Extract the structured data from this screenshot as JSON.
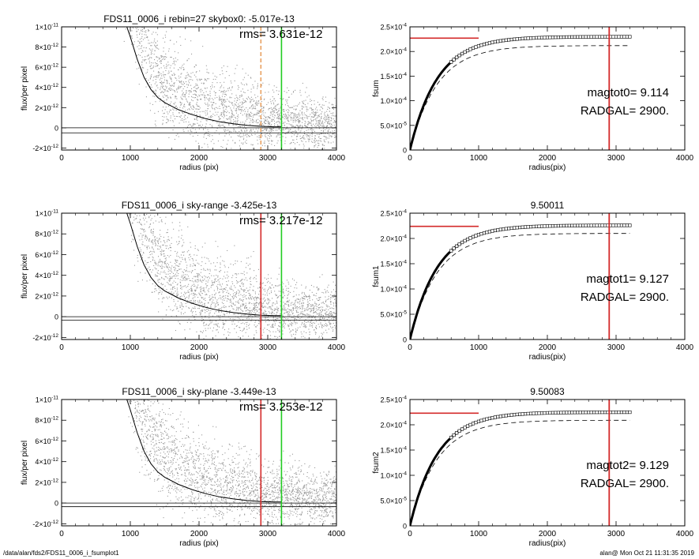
{
  "footer": {
    "left": "/data/alan/fds2/FDS11_0006_i_fsumplot1",
    "right": "alan@  Mon Oct 21 11:31:35 2019"
  },
  "colors": {
    "scatter_points": "#999999",
    "profile_line": "#000000",
    "red_line": "#d42a2a",
    "green_line": "#22cc22",
    "orange_dashed_line": "#e8a060"
  },
  "chart_data": [
    {
      "id": "row1-left",
      "type": "scatter",
      "title": "FDS11_0006_i rebin=27    skybox0: -5.017e-13",
      "annotation": "rms= 3.631e-12",
      "xlabel": "radius (pix)",
      "ylabel": "flux/per pixel",
      "xlim": [
        0,
        4000
      ],
      "ylim": [
        -2.2e-12,
        1e-11
      ],
      "x_ticks": [
        "0",
        "1000",
        "2000",
        "3000",
        "4000"
      ],
      "y_ticks": [
        {
          "v": -2e-12,
          "m": "-2×10",
          "e": "-12"
        },
        {
          "v": 0,
          "m": "0",
          "e": ""
        },
        {
          "v": 2e-12,
          "m": "2×10",
          "e": "-12"
        },
        {
          "v": 4e-12,
          "m": "4×10",
          "e": "-12"
        },
        {
          "v": 6e-12,
          "m": "6×10",
          "e": "-12"
        },
        {
          "v": 8e-12,
          "m": "8×10",
          "e": "-12"
        },
        {
          "v": 1e-11,
          "m": "1×10",
          "e": "-11"
        }
      ],
      "profile": {
        "x": [
          950,
          1000,
          1100,
          1200,
          1300,
          1400,
          1500,
          1700,
          1900,
          2100,
          2300,
          2500,
          2700,
          2900,
          3100,
          3200
        ],
        "y": [
          1e-11,
          9e-12,
          6.8e-12,
          5e-12,
          3.8e-12,
          3e-12,
          2.5e-12,
          1.8e-12,
          1.3e-12,
          9e-13,
          6e-13,
          4e-13,
          2.5e-13,
          1.5e-13,
          1e-13,
          1e-13
        ]
      },
      "horizontal_lines": [
        0,
        -5.017e-13
      ],
      "vertical_lines": [
        {
          "x": 2900,
          "color": "orange",
          "style": "dashed"
        },
        {
          "x": 3200,
          "color": "green",
          "style": "solid"
        }
      ]
    },
    {
      "id": "row1-right",
      "type": "line",
      "title": "",
      "xlabel": "radius(pix)",
      "ylabel": "fsum",
      "xlim": [
        0,
        4000
      ],
      "ylim": [
        0,
        0.00025
      ],
      "x_ticks": [
        "0",
        "1000",
        "2000",
        "3000",
        "4000"
      ],
      "y_ticks": [
        {
          "v": 0,
          "m": "0",
          "e": ""
        },
        {
          "v": 5e-05,
          "m": "5.0×10",
          "e": "-5"
        },
        {
          "v": 0.0001,
          "m": "1.0×10",
          "e": "-4"
        },
        {
          "v": 0.00015,
          "m": "1.5×10",
          "e": "-4"
        },
        {
          "v": 0.0002,
          "m": "2.0×10",
          "e": "-4"
        },
        {
          "v": 0.00025,
          "m": "2.5×10",
          "e": "-4"
        }
      ],
      "asymptote": 0.00023,
      "dashed_asymptote": 0.000212,
      "curve_end_x": 3200,
      "red_hline": {
        "y": 0.000227,
        "x0": 0,
        "x1": 1000
      },
      "red_vline_x": 2900,
      "text_lines": [
        "magtot0=   9.114",
        "RADGAL=   2900."
      ]
    },
    {
      "id": "row2-left",
      "type": "scatter",
      "title": "FDS11_0006_i sky-range -3.425e-13",
      "annotation": "rms= 3.217e-12",
      "xlabel": "radius (pix)",
      "ylabel": "flux/per pixel",
      "xlim": [
        0,
        4000
      ],
      "ylim": [
        -2.2e-12,
        1e-11
      ],
      "x_ticks": [
        "0",
        "1000",
        "2000",
        "3000",
        "4000"
      ],
      "y_ticks": [
        {
          "v": -2e-12,
          "m": "-2×10",
          "e": "-12"
        },
        {
          "v": 0,
          "m": "0",
          "e": ""
        },
        {
          "v": 2e-12,
          "m": "2×10",
          "e": "-12"
        },
        {
          "v": 4e-12,
          "m": "4×10",
          "e": "-12"
        },
        {
          "v": 6e-12,
          "m": "6×10",
          "e": "-12"
        },
        {
          "v": 8e-12,
          "m": "8×10",
          "e": "-12"
        },
        {
          "v": 1e-11,
          "m": "1×10",
          "e": "-11"
        }
      ],
      "profile": {
        "x": [
          950,
          1000,
          1100,
          1200,
          1300,
          1400,
          1500,
          1700,
          1900,
          2100,
          2300,
          2500,
          2700,
          2900,
          3100,
          3200
        ],
        "y": [
          1e-11,
          9e-12,
          6.8e-12,
          5e-12,
          3.8e-12,
          3e-12,
          2.5e-12,
          1.8e-12,
          1.3e-12,
          9e-13,
          6e-13,
          4e-13,
          2.5e-13,
          1.5e-13,
          1e-13,
          1e-13
        ]
      },
      "horizontal_lines": [
        0,
        -3.425e-13
      ],
      "vertical_lines": [
        {
          "x": 2900,
          "color": "red",
          "style": "solid"
        },
        {
          "x": 3200,
          "color": "green",
          "style": "solid"
        }
      ]
    },
    {
      "id": "row2-right",
      "type": "line",
      "title": "9.50011",
      "xlabel": "radius(pix)",
      "ylabel": "fsum1",
      "xlim": [
        0,
        4000
      ],
      "ylim": [
        0,
        0.00025
      ],
      "x_ticks": [
        "0",
        "1000",
        "2000",
        "3000",
        "4000"
      ],
      "y_ticks": [
        {
          "v": 0,
          "m": "0",
          "e": ""
        },
        {
          "v": 5e-05,
          "m": "5.0×10",
          "e": "-5"
        },
        {
          "v": 0.0001,
          "m": "1.0×10",
          "e": "-4"
        },
        {
          "v": 0.00015,
          "m": "1.5×10",
          "e": "-4"
        },
        {
          "v": 0.0002,
          "m": "2.0×10",
          "e": "-4"
        },
        {
          "v": 0.00025,
          "m": "2.5×10",
          "e": "-4"
        }
      ],
      "asymptote": 0.000226,
      "dashed_asymptote": 0.00021,
      "curve_end_x": 3200,
      "red_hline": {
        "y": 0.000224,
        "x0": 0,
        "x1": 1000
      },
      "red_vline_x": 2900,
      "text_lines": [
        "magtot1=   9.127",
        "RADGAL=   2900."
      ]
    },
    {
      "id": "row3-left",
      "type": "scatter",
      "title": "FDS11_0006_i sky-plane -3.449e-13",
      "annotation": "rms= 3.253e-12",
      "xlabel": "radius (pix)",
      "ylabel": "flux/per pixel",
      "xlim": [
        0,
        4000
      ],
      "ylim": [
        -2.2e-12,
        1e-11
      ],
      "x_ticks": [
        "0",
        "1000",
        "2000",
        "3000",
        "4000"
      ],
      "y_ticks": [
        {
          "v": -2e-12,
          "m": "-2×10",
          "e": "-12"
        },
        {
          "v": 0,
          "m": "0",
          "e": ""
        },
        {
          "v": 2e-12,
          "m": "2×10",
          "e": "-12"
        },
        {
          "v": 4e-12,
          "m": "4×10",
          "e": "-12"
        },
        {
          "v": 6e-12,
          "m": "6×10",
          "e": "-12"
        },
        {
          "v": 8e-12,
          "m": "8×10",
          "e": "-12"
        },
        {
          "v": 1e-11,
          "m": "1×10",
          "e": "-11"
        }
      ],
      "profile": {
        "x": [
          950,
          1000,
          1100,
          1200,
          1300,
          1400,
          1500,
          1700,
          1900,
          2100,
          2300,
          2500,
          2700,
          2900,
          3100,
          3200
        ],
        "y": [
          1e-11,
          9e-12,
          6.8e-12,
          5e-12,
          3.8e-12,
          3e-12,
          2.5e-12,
          1.8e-12,
          1.3e-12,
          9e-13,
          6e-13,
          4e-13,
          2.5e-13,
          1.5e-13,
          1e-13,
          1e-13
        ]
      },
      "horizontal_lines": [
        0,
        -3.449e-13
      ],
      "vertical_lines": [
        {
          "x": 2900,
          "color": "red",
          "style": "solid"
        },
        {
          "x": 3200,
          "color": "green",
          "style": "solid"
        }
      ]
    },
    {
      "id": "row3-right",
      "type": "line",
      "title": "9.50083",
      "xlabel": "radius(pix)",
      "ylabel": "fsum2",
      "xlim": [
        0,
        4000
      ],
      "ylim": [
        0,
        0.00025
      ],
      "x_ticks": [
        "0",
        "1000",
        "2000",
        "3000",
        "4000"
      ],
      "y_ticks": [
        {
          "v": 0,
          "m": "0",
          "e": ""
        },
        {
          "v": 5e-05,
          "m": "5.0×10",
          "e": "-5"
        },
        {
          "v": 0.0001,
          "m": "1.0×10",
          "e": "-4"
        },
        {
          "v": 0.00015,
          "m": "1.5×10",
          "e": "-4"
        },
        {
          "v": 0.0002,
          "m": "2.0×10",
          "e": "-4"
        },
        {
          "v": 0.00025,
          "m": "2.5×10",
          "e": "-4"
        }
      ],
      "asymptote": 0.000225,
      "dashed_asymptote": 0.000209,
      "curve_end_x": 3200,
      "red_hline": {
        "y": 0.000223,
        "x0": 0,
        "x1": 1000
      },
      "red_vline_x": 2900,
      "text_lines": [
        "magtot2=   9.129",
        "RADGAL=   2900."
      ]
    }
  ]
}
